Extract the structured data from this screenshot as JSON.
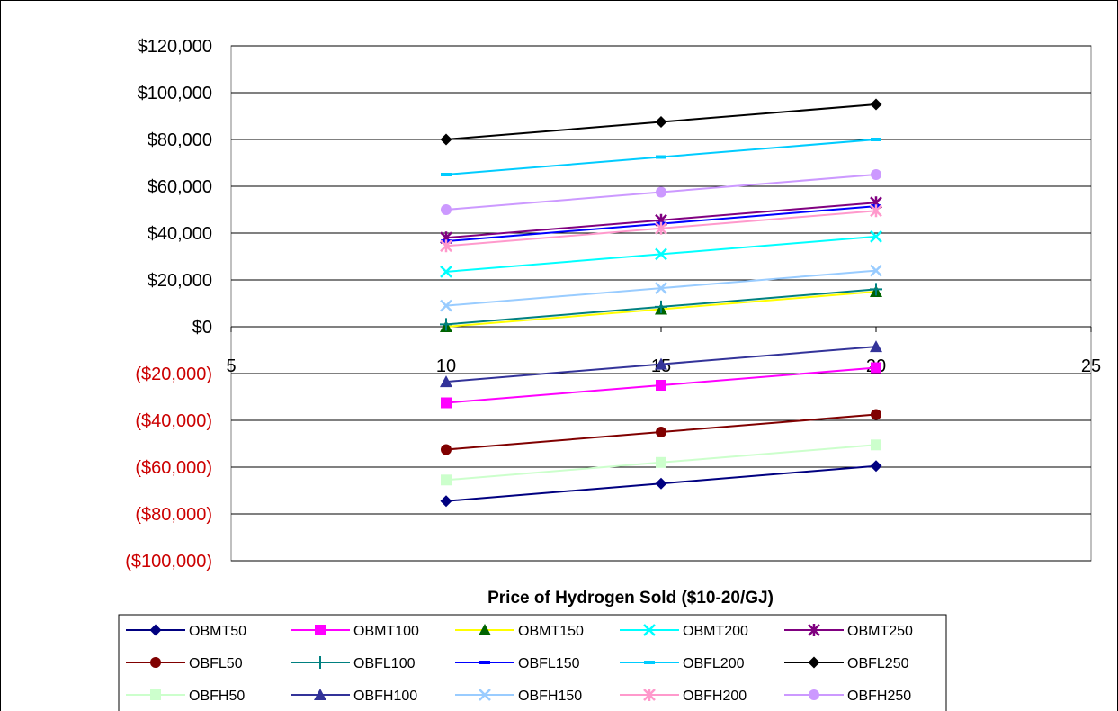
{
  "chart_data": {
    "type": "line",
    "title": "",
    "xlabel": "Price of Hydrogen Sold ($10-20/GJ)",
    "ylabel": "",
    "xlim": [
      5,
      25
    ],
    "ylim": [
      -100000,
      120000
    ],
    "x_ticks": [
      5,
      10,
      15,
      20,
      25
    ],
    "x_tick_labels": [
      "5",
      "10",
      "15",
      "20",
      "25"
    ],
    "y_ticks": [
      120000,
      100000,
      80000,
      60000,
      40000,
      20000,
      0,
      -20000,
      -40000,
      -60000,
      -80000,
      -100000
    ],
    "y_tick_labels": [
      "$120,000",
      "$100,000",
      "$80,000",
      "$60,000",
      "$40,000",
      "$20,000",
      "$0",
      "($20,000)",
      "($40,000)",
      "($60,000)",
      "($80,000)",
      "($100,000)"
    ],
    "grid": "horizontal",
    "legend_position": "bottom",
    "x": [
      10,
      15,
      20
    ],
    "series": [
      {
        "name": "OBMT50",
        "color": "#000080",
        "marker": "diamond",
        "values": [
          -74500,
          -67000,
          -59500
        ]
      },
      {
        "name": "OBMT100",
        "color": "#ff00ff",
        "marker": "square",
        "values": [
          -32500,
          -25000,
          -17500
        ]
      },
      {
        "name": "OBMT150",
        "color": "#ffff00",
        "marker": "triangle",
        "marker_color": "#006400",
        "values": [
          0,
          7500,
          15000
        ]
      },
      {
        "name": "OBMT200",
        "color": "#00ffff",
        "marker": "x",
        "values": [
          23500,
          31000,
          38500
        ]
      },
      {
        "name": "OBMT250",
        "color": "#800080",
        "marker": "star",
        "values": [
          38000,
          45500,
          53000
        ]
      },
      {
        "name": "OBFL50",
        "color": "#800000",
        "marker": "circle",
        "values": [
          -52500,
          -45000,
          -37500
        ]
      },
      {
        "name": "OBFL100",
        "color": "#008080",
        "marker": "plus",
        "values": [
          1000,
          8500,
          16000
        ]
      },
      {
        "name": "OBFL150",
        "color": "#0000ff",
        "marker": "dash",
        "values": [
          36500,
          44000,
          51500
        ]
      },
      {
        "name": "OBFL200",
        "color": "#00ccff",
        "marker": "dash",
        "values": [
          65000,
          72500,
          80000
        ]
      },
      {
        "name": "OBFL250",
        "color": "#000000",
        "marker": "diamond",
        "values": [
          80000,
          87500,
          95000
        ]
      },
      {
        "name": "OBFH50",
        "color": "#ccffcc",
        "marker": "square",
        "values": [
          -65500,
          -58000,
          -50500
        ]
      },
      {
        "name": "OBFH100",
        "color": "#333399",
        "marker": "triangle",
        "values": [
          -23500,
          -16000,
          -8500
        ]
      },
      {
        "name": "OBFH150",
        "color": "#99ccff",
        "marker": "x",
        "values": [
          9000,
          16500,
          24000
        ]
      },
      {
        "name": "OBFH200",
        "color": "#ff99cc",
        "marker": "star",
        "values": [
          34500,
          42000,
          49500
        ]
      },
      {
        "name": "OBFH250",
        "color": "#cc99ff",
        "marker": "circle",
        "values": [
          50000,
          57500,
          65000
        ]
      }
    ]
  }
}
